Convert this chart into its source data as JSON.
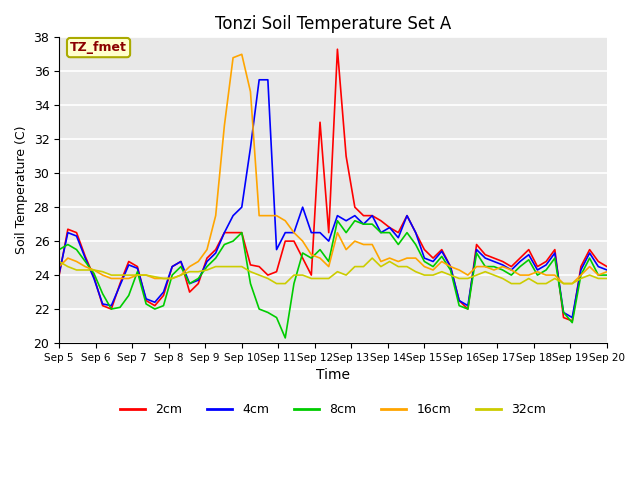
{
  "title": "Tonzi Soil Temperature Set A",
  "xlabel": "Time",
  "ylabel": "Soil Temperature (C)",
  "ylim": [
    20,
    38
  ],
  "annotation_text": "TZ_fmet",
  "annotation_color": "#8B0000",
  "annotation_bg": "#FFFFCC",
  "annotation_edge": "#AAAA00",
  "bg_color": "#E8E8E8",
  "legend_labels": [
    "2cm",
    "4cm",
    "8cm",
    "16cm",
    "32cm"
  ],
  "line_colors": [
    "#FF0000",
    "#0000FF",
    "#00CC00",
    "#FFA500",
    "#CCCC00"
  ],
  "x_tick_labels": [
    "Sep 5",
    "Sep 6",
    "Sep 7",
    "Sep 8",
    "Sep 9",
    "Sep 10",
    "Sep 11",
    "Sep 12",
    "Sep 13",
    "Sep 14",
    "Sep 15",
    "Sep 16",
    "Sep 17",
    "Sep 18",
    "Sep 19",
    "Sep 20"
  ],
  "series_2cm": [
    24.0,
    26.7,
    26.5,
    25.1,
    23.9,
    22.2,
    22.0,
    23.5,
    24.8,
    24.5,
    22.5,
    22.2,
    22.8,
    24.5,
    24.8,
    23.0,
    23.5,
    25.0,
    25.5,
    26.5,
    26.5,
    26.5,
    24.6,
    24.5,
    24.0,
    24.2,
    26.0,
    26.0,
    25.0,
    24.0,
    33.0,
    26.5,
    37.3,
    31.0,
    28.0,
    27.5,
    27.5,
    27.2,
    26.8,
    26.5,
    27.5,
    26.5,
    25.5,
    25.0,
    25.5,
    24.5,
    22.5,
    22.0,
    25.8,
    25.2,
    25.0,
    24.8,
    24.5,
    25.0,
    25.5,
    24.5,
    24.8,
    25.5,
    21.5,
    21.3,
    24.5,
    25.5,
    24.8,
    24.5
  ],
  "series_4cm": [
    24.1,
    26.5,
    26.3,
    25.0,
    23.8,
    22.3,
    22.2,
    23.4,
    24.6,
    24.4,
    22.6,
    22.4,
    23.0,
    24.5,
    24.8,
    23.5,
    23.7,
    24.8,
    25.3,
    26.5,
    27.5,
    28.0,
    31.5,
    35.5,
    35.5,
    25.5,
    26.5,
    26.5,
    28.0,
    26.5,
    26.5,
    26.0,
    27.5,
    27.2,
    27.5,
    27.0,
    27.5,
    26.5,
    26.8,
    26.2,
    27.5,
    26.5,
    25.0,
    24.8,
    25.4,
    24.5,
    22.5,
    22.2,
    25.5,
    25.0,
    24.8,
    24.6,
    24.3,
    24.8,
    25.2,
    24.3,
    24.6,
    25.3,
    21.8,
    21.5,
    24.3,
    25.3,
    24.5,
    24.3
  ],
  "series_8cm": [
    25.5,
    25.8,
    25.5,
    24.8,
    24.1,
    22.9,
    22.0,
    22.1,
    22.8,
    24.2,
    22.3,
    22.0,
    22.2,
    24.0,
    24.5,
    23.5,
    23.8,
    24.5,
    25.0,
    25.8,
    26.0,
    26.5,
    23.5,
    22.0,
    21.8,
    21.5,
    20.3,
    23.5,
    25.3,
    25.0,
    25.5,
    24.8,
    27.2,
    26.5,
    27.2,
    27.0,
    27.0,
    26.5,
    26.5,
    25.8,
    26.5,
    25.8,
    24.8,
    24.5,
    25.1,
    24.3,
    22.2,
    22.0,
    25.3,
    24.5,
    24.5,
    24.3,
    24.0,
    24.5,
    24.9,
    24.0,
    24.3,
    25.0,
    21.8,
    21.2,
    24.0,
    25.0,
    24.0,
    24.0
  ],
  "series_16cm": [
    24.5,
    25.0,
    24.8,
    24.5,
    24.3,
    24.0,
    23.8,
    23.8,
    23.8,
    24.0,
    24.0,
    23.8,
    23.8,
    23.8,
    24.0,
    24.5,
    24.8,
    25.5,
    27.5,
    32.8,
    36.8,
    37.0,
    34.8,
    27.5,
    27.5,
    27.5,
    27.2,
    26.5,
    26.0,
    25.2,
    25.0,
    24.5,
    26.5,
    25.5,
    26.0,
    25.8,
    25.8,
    24.8,
    25.0,
    24.8,
    25.0,
    25.0,
    24.5,
    24.3,
    24.8,
    24.5,
    24.3,
    24.0,
    24.5,
    24.5,
    24.3,
    24.5,
    24.3,
    24.0,
    24.0,
    24.2,
    24.0,
    24.0,
    23.5,
    23.5,
    24.0,
    24.5,
    24.0,
    24.2
  ],
  "series_32cm": [
    24.8,
    24.5,
    24.3,
    24.3,
    24.3,
    24.2,
    24.0,
    24.0,
    24.0,
    24.0,
    24.0,
    23.9,
    23.8,
    23.8,
    24.0,
    24.2,
    24.2,
    24.3,
    24.5,
    24.5,
    24.5,
    24.5,
    24.2,
    24.0,
    23.8,
    23.5,
    23.5,
    24.0,
    24.0,
    23.8,
    23.8,
    23.8,
    24.2,
    24.0,
    24.5,
    24.5,
    25.0,
    24.5,
    24.8,
    24.5,
    24.5,
    24.2,
    24.0,
    24.0,
    24.2,
    24.0,
    23.8,
    23.8,
    24.0,
    24.2,
    24.0,
    23.8,
    23.5,
    23.5,
    23.8,
    23.5,
    23.5,
    23.8,
    23.5,
    23.5,
    23.8,
    24.0,
    23.8,
    23.8
  ]
}
